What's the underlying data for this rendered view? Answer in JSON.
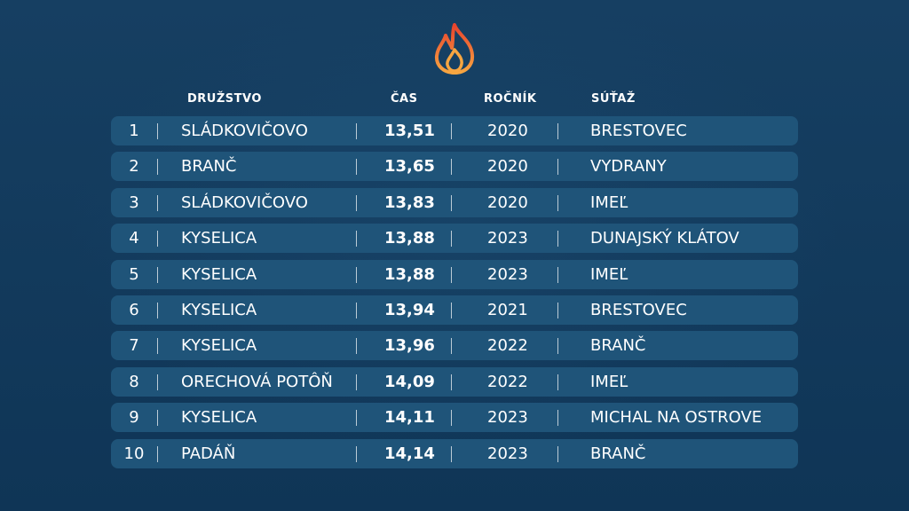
{
  "colors": {
    "background": "#123a5c",
    "row": "#1f5479",
    "flame_outer": "#e8432d",
    "flame_inner": "#f7a641"
  },
  "logo": {
    "icon": "flame-icon"
  },
  "columns": {
    "team": "DRUŽSTVO",
    "time": "ČAS",
    "year": "ROČNÍK",
    "competition": "SÚŤAŽ"
  },
  "rows": [
    {
      "rank": "1",
      "team": "SLÁDKOVIČOVO",
      "time": "13,51",
      "year": "2020",
      "competition": "BRESTOVEC"
    },
    {
      "rank": "2",
      "team": "BRANČ",
      "time": "13,65",
      "year": "2020",
      "competition": "VYDRANY"
    },
    {
      "rank": "3",
      "team": "SLÁDKOVIČOVO",
      "time": "13,83",
      "year": "2020",
      "competition": "IMEĽ"
    },
    {
      "rank": "4",
      "team": "KYSELICA",
      "time": "13,88",
      "year": "2023",
      "competition": "DUNAJSKÝ KLÁTOV"
    },
    {
      "rank": "5",
      "team": "KYSELICA",
      "time": "13,88",
      "year": "2023",
      "competition": "IMEĽ"
    },
    {
      "rank": "6",
      "team": "KYSELICA",
      "time": "13,94",
      "year": "2021",
      "competition": "BRESTOVEC"
    },
    {
      "rank": "7",
      "team": "KYSELICA",
      "time": "13,96",
      "year": "2022",
      "competition": "BRANČ"
    },
    {
      "rank": "8",
      "team": "ORECHOVÁ POTÔŇ",
      "time": "14,09",
      "year": "2022",
      "competition": "IMEĽ"
    },
    {
      "rank": "9",
      "team": "KYSELICA",
      "time": "14,11",
      "year": "2023",
      "competition": "MICHAL NA OSTROVE"
    },
    {
      "rank": "10",
      "team": "PADÁŇ",
      "time": "14,14",
      "year": "2023",
      "competition": "BRANČ"
    }
  ]
}
